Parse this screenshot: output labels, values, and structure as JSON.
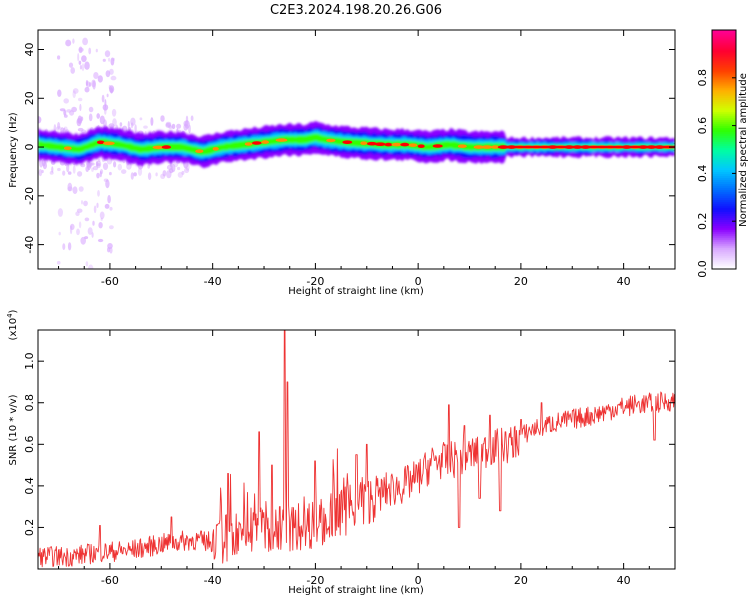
{
  "title": "C2E3.2024.198.20.26.G06",
  "chart_data": [
    {
      "type": "heatmap",
      "xlabel": "Height of straight line (km)",
      "ylabel": "Frequency (Hz)",
      "xlim": [
        -74,
        50
      ],
      "ylim": [
        -50,
        48
      ],
      "xticks": [
        -60,
        -40,
        -20,
        0,
        20,
        40
      ],
      "yticks": [
        -40,
        -20,
        0,
        20,
        40
      ],
      "colorbar": {
        "label": "Normalized spectral amplitude",
        "range": [
          0,
          1
        ],
        "ticks": [
          0.0,
          0.2,
          0.4,
          0.6,
          0.8
        ],
        "tick_labels": [
          "0.0",
          "0.2",
          "0.4",
          "0.6",
          "0.8"
        ],
        "colormap": [
          "#ffffff",
          "#d8a8ff",
          "#8a00ff",
          "#1010ff",
          "#00c8ff",
          "#00ff80",
          "#30ff00",
          "#d0ff00",
          "#ff9000",
          "#ff0000",
          "#ff0090"
        ]
      },
      "ridge": [
        {
          "x": -74,
          "y": 1
        },
        {
          "x": -70,
          "y": 0
        },
        {
          "x": -66,
          "y": -1
        },
        {
          "x": -62,
          "y": 2
        },
        {
          "x": -58,
          "y": 1
        },
        {
          "x": -54,
          "y": -1
        },
        {
          "x": -50,
          "y": 0
        },
        {
          "x": -46,
          "y": 0
        },
        {
          "x": -42,
          "y": -2
        },
        {
          "x": -38,
          "y": 0
        },
        {
          "x": -34,
          "y": 1
        },
        {
          "x": -30,
          "y": 2
        },
        {
          "x": -26,
          "y": 3
        },
        {
          "x": -22,
          "y": 3
        },
        {
          "x": -20,
          "y": 4
        },
        {
          "x": -18,
          "y": 3
        },
        {
          "x": -14,
          "y": 2
        },
        {
          "x": -10,
          "y": 1.5
        },
        {
          "x": -6,
          "y": 1
        },
        {
          "x": -2,
          "y": 1
        },
        {
          "x": 2,
          "y": 0
        },
        {
          "x": 6,
          "y": 1
        },
        {
          "x": 10,
          "y": 0
        },
        {
          "x": 14,
          "y": 0
        },
        {
          "x": 18,
          "y": 0
        },
        {
          "x": 22,
          "y": 0
        },
        {
          "x": 26,
          "y": 0
        },
        {
          "x": 30,
          "y": 0
        },
        {
          "x": 34,
          "y": 0
        },
        {
          "x": 38,
          "y": 0
        },
        {
          "x": 42,
          "y": 0
        },
        {
          "x": 46,
          "y": 0
        },
        {
          "x": 50,
          "y": 0
        }
      ],
      "reference_band": {
        "y_min": -1.5,
        "y_max": 1.5,
        "x_min": -12,
        "x_max": 50
      },
      "scatter_clusters": [
        {
          "x_min": -70,
          "x_max": -64,
          "y_min": -48,
          "y_max": 44
        },
        {
          "x_min": -64,
          "x_max": -59,
          "y_min": -50,
          "y_max": 40
        },
        {
          "x_min": -74,
          "x_max": -44,
          "y_min": -12,
          "y_max": 12
        }
      ]
    },
    {
      "type": "line",
      "xlabel": "Height of straight line (km)",
      "ylabel": "SNR (10 * v/v)",
      "y_multiplier_label": "(x10",
      "y_multiplier_exp": "4",
      "y_multiplier_close": ")",
      "xlim": [
        -74,
        50
      ],
      "ylim": [
        0,
        1.15
      ],
      "xticks": [
        -60,
        -40,
        -20,
        0,
        20,
        40
      ],
      "yticks": [
        0.2,
        0.4,
        0.6,
        0.8,
        1.0
      ],
      "ytick_labels": [
        "0.2",
        "0.4",
        "0.6",
        "0.8",
        "1.0"
      ],
      "color": "#ee3333",
      "trend": [
        {
          "x": -74,
          "y": 0.06
        },
        {
          "x": -68,
          "y": 0.06
        },
        {
          "x": -62,
          "y": 0.08
        },
        {
          "x": -56,
          "y": 0.09
        },
        {
          "x": -50,
          "y": 0.12
        },
        {
          "x": -44,
          "y": 0.14
        },
        {
          "x": -40,
          "y": 0.13
        },
        {
          "x": -36,
          "y": 0.16
        },
        {
          "x": -32,
          "y": 0.19
        },
        {
          "x": -28,
          "y": 0.2
        },
        {
          "x": -24,
          "y": 0.2
        },
        {
          "x": -20,
          "y": 0.22
        },
        {
          "x": -16,
          "y": 0.26
        },
        {
          "x": -12,
          "y": 0.3
        },
        {
          "x": -9,
          "y": 0.34
        },
        {
          "x": -6,
          "y": 0.38
        },
        {
          "x": -3,
          "y": 0.4
        },
        {
          "x": 0,
          "y": 0.44
        },
        {
          "x": 3,
          "y": 0.52
        },
        {
          "x": 6,
          "y": 0.52
        },
        {
          "x": 10,
          "y": 0.55
        },
        {
          "x": 14,
          "y": 0.58
        },
        {
          "x": 18,
          "y": 0.6
        },
        {
          "x": 22,
          "y": 0.67
        },
        {
          "x": 26,
          "y": 0.7
        },
        {
          "x": 30,
          "y": 0.72
        },
        {
          "x": 34,
          "y": 0.74
        },
        {
          "x": 38,
          "y": 0.77
        },
        {
          "x": 42,
          "y": 0.79
        },
        {
          "x": 46,
          "y": 0.8
        },
        {
          "x": 50,
          "y": 0.81
        }
      ],
      "spikes": [
        {
          "x": -62,
          "y": 0.21
        },
        {
          "x": -48,
          "y": 0.25
        },
        {
          "x": -37,
          "y": 0.46
        },
        {
          "x": -31,
          "y": 0.66
        },
        {
          "x": -28.5,
          "y": 0.5
        },
        {
          "x": -26,
          "y": 1.15
        },
        {
          "x": -25.5,
          "y": 0.9
        },
        {
          "x": -20,
          "y": 0.52
        },
        {
          "x": -12,
          "y": 0.55
        },
        {
          "x": -10,
          "y": 0.6
        },
        {
          "x": 6,
          "y": 0.79
        },
        {
          "x": 9,
          "y": 0.69
        },
        {
          "x": 14,
          "y": 0.74
        },
        {
          "x": 17,
          "y": 0.66
        },
        {
          "x": 20,
          "y": 0.72
        },
        {
          "x": 24,
          "y": 0.8
        }
      ],
      "dips": [
        {
          "x": 8,
          "y": 0.2
        },
        {
          "x": 12,
          "y": 0.34
        },
        {
          "x": 16,
          "y": 0.28
        },
        {
          "x": 46,
          "y": 0.62
        }
      ]
    }
  ]
}
